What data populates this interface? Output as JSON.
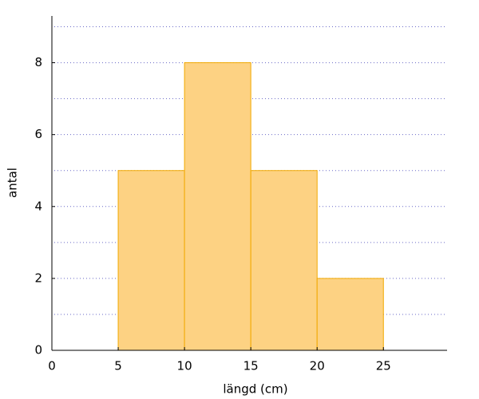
{
  "chart_data": {
    "type": "histogram",
    "xlabel": "längd (cm)",
    "ylabel": "antal",
    "bins": [
      5,
      10,
      15,
      20,
      25
    ],
    "counts": [
      5,
      8,
      5,
      2
    ],
    "color": "#fdd283",
    "edgecolor": "#f2a900",
    "xlim": [
      0,
      29.8
    ],
    "ylim": [
      0,
      9.3
    ],
    "xticks": [
      0,
      5,
      10,
      15,
      20,
      25
    ],
    "yticks": [
      0,
      2,
      4,
      6,
      8
    ],
    "grid_yticks": [
      1,
      2,
      3,
      4,
      5,
      6,
      7,
      8,
      9
    ],
    "grid": true,
    "grid_color": "#6a6ac8"
  }
}
